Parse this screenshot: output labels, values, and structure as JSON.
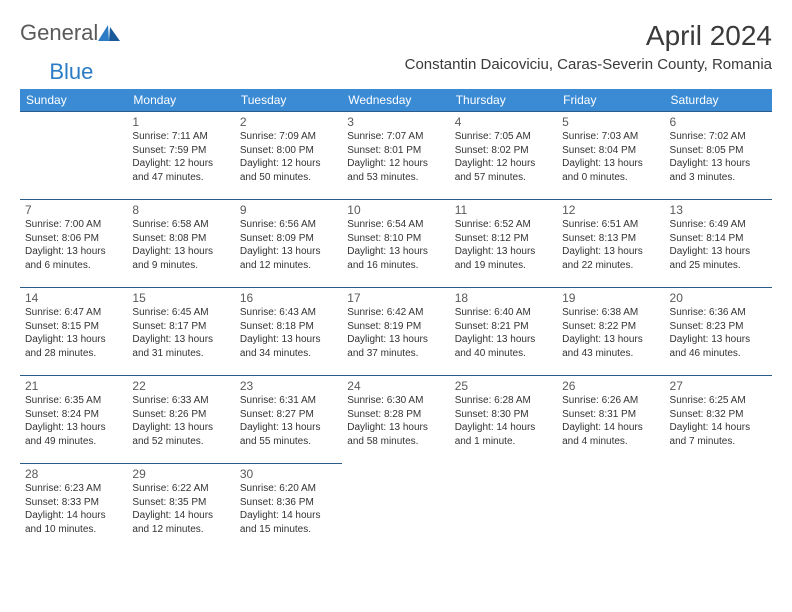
{
  "brand": {
    "part1": "General",
    "part2": "Blue"
  },
  "title": "April 2024",
  "location": "Constantin Daicoviciu, Caras-Severin County, Romania",
  "colors": {
    "header_bg": "#3b8bd4",
    "header_text": "#ffffff",
    "cell_border": "#2c5a8a",
    "text": "#333333",
    "daynum": "#5a5a5a",
    "brand_gray": "#5a5a5a",
    "brand_blue": "#2b7cc4"
  },
  "dow": [
    "Sunday",
    "Monday",
    "Tuesday",
    "Wednesday",
    "Thursday",
    "Friday",
    "Saturday"
  ],
  "weeks": [
    [
      null,
      {
        "n": "1",
        "sr": "7:11 AM",
        "ss": "7:59 PM",
        "dl": "12 hours and 47 minutes."
      },
      {
        "n": "2",
        "sr": "7:09 AM",
        "ss": "8:00 PM",
        "dl": "12 hours and 50 minutes."
      },
      {
        "n": "3",
        "sr": "7:07 AM",
        "ss": "8:01 PM",
        "dl": "12 hours and 53 minutes."
      },
      {
        "n": "4",
        "sr": "7:05 AM",
        "ss": "8:02 PM",
        "dl": "12 hours and 57 minutes."
      },
      {
        "n": "5",
        "sr": "7:03 AM",
        "ss": "8:04 PM",
        "dl": "13 hours and 0 minutes."
      },
      {
        "n": "6",
        "sr": "7:02 AM",
        "ss": "8:05 PM",
        "dl": "13 hours and 3 minutes."
      }
    ],
    [
      {
        "n": "7",
        "sr": "7:00 AM",
        "ss": "8:06 PM",
        "dl": "13 hours and 6 minutes."
      },
      {
        "n": "8",
        "sr": "6:58 AM",
        "ss": "8:08 PM",
        "dl": "13 hours and 9 minutes."
      },
      {
        "n": "9",
        "sr": "6:56 AM",
        "ss": "8:09 PM",
        "dl": "13 hours and 12 minutes."
      },
      {
        "n": "10",
        "sr": "6:54 AM",
        "ss": "8:10 PM",
        "dl": "13 hours and 16 minutes."
      },
      {
        "n": "11",
        "sr": "6:52 AM",
        "ss": "8:12 PM",
        "dl": "13 hours and 19 minutes."
      },
      {
        "n": "12",
        "sr": "6:51 AM",
        "ss": "8:13 PM",
        "dl": "13 hours and 22 minutes."
      },
      {
        "n": "13",
        "sr": "6:49 AM",
        "ss": "8:14 PM",
        "dl": "13 hours and 25 minutes."
      }
    ],
    [
      {
        "n": "14",
        "sr": "6:47 AM",
        "ss": "8:15 PM",
        "dl": "13 hours and 28 minutes."
      },
      {
        "n": "15",
        "sr": "6:45 AM",
        "ss": "8:17 PM",
        "dl": "13 hours and 31 minutes."
      },
      {
        "n": "16",
        "sr": "6:43 AM",
        "ss": "8:18 PM",
        "dl": "13 hours and 34 minutes."
      },
      {
        "n": "17",
        "sr": "6:42 AM",
        "ss": "8:19 PM",
        "dl": "13 hours and 37 minutes."
      },
      {
        "n": "18",
        "sr": "6:40 AM",
        "ss": "8:21 PM",
        "dl": "13 hours and 40 minutes."
      },
      {
        "n": "19",
        "sr": "6:38 AM",
        "ss": "8:22 PM",
        "dl": "13 hours and 43 minutes."
      },
      {
        "n": "20",
        "sr": "6:36 AM",
        "ss": "8:23 PM",
        "dl": "13 hours and 46 minutes."
      }
    ],
    [
      {
        "n": "21",
        "sr": "6:35 AM",
        "ss": "8:24 PM",
        "dl": "13 hours and 49 minutes."
      },
      {
        "n": "22",
        "sr": "6:33 AM",
        "ss": "8:26 PM",
        "dl": "13 hours and 52 minutes."
      },
      {
        "n": "23",
        "sr": "6:31 AM",
        "ss": "8:27 PM",
        "dl": "13 hours and 55 minutes."
      },
      {
        "n": "24",
        "sr": "6:30 AM",
        "ss": "8:28 PM",
        "dl": "13 hours and 58 minutes."
      },
      {
        "n": "25",
        "sr": "6:28 AM",
        "ss": "8:30 PM",
        "dl": "14 hours and 1 minute."
      },
      {
        "n": "26",
        "sr": "6:26 AM",
        "ss": "8:31 PM",
        "dl": "14 hours and 4 minutes."
      },
      {
        "n": "27",
        "sr": "6:25 AM",
        "ss": "8:32 PM",
        "dl": "14 hours and 7 minutes."
      }
    ],
    [
      {
        "n": "28",
        "sr": "6:23 AM",
        "ss": "8:33 PM",
        "dl": "14 hours and 10 minutes."
      },
      {
        "n": "29",
        "sr": "6:22 AM",
        "ss": "8:35 PM",
        "dl": "14 hours and 12 minutes."
      },
      {
        "n": "30",
        "sr": "6:20 AM",
        "ss": "8:36 PM",
        "dl": "14 hours and 15 minutes."
      },
      null,
      null,
      null,
      null
    ]
  ],
  "labels": {
    "sunrise": "Sunrise:",
    "sunset": "Sunset:",
    "daylight": "Daylight:"
  }
}
